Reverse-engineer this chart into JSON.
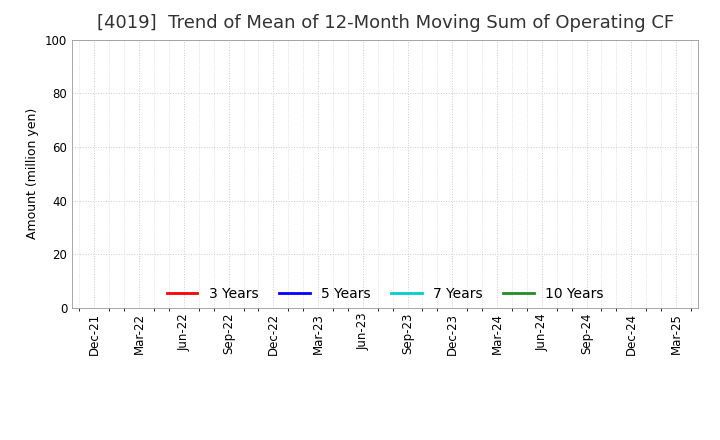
{
  "title": "[4019]  Trend of Mean of 12-Month Moving Sum of Operating CF",
  "ylabel": "Amount (million yen)",
  "ylim": [
    0,
    100
  ],
  "yticks": [
    0,
    20,
    40,
    60,
    80,
    100
  ],
  "x_labels": [
    "Dec-21",
    "Mar-22",
    "Jun-22",
    "Sep-22",
    "Dec-22",
    "Mar-23",
    "Jun-23",
    "Sep-23",
    "Dec-23",
    "Mar-24",
    "Jun-24",
    "Sep-24",
    "Dec-24",
    "Mar-25"
  ],
  "legend_entries": [
    {
      "label": "3 Years",
      "color": "#ff0000"
    },
    {
      "label": "5 Years",
      "color": "#0000ff"
    },
    {
      "label": "7 Years",
      "color": "#00cccc"
    },
    {
      "label": "10 Years",
      "color": "#228B22"
    }
  ],
  "background_color": "#ffffff",
  "grid_color": "#cccccc",
  "title_fontsize": 13,
  "axis_label_fontsize": 9,
  "tick_fontsize": 8.5,
  "legend_fontsize": 10
}
